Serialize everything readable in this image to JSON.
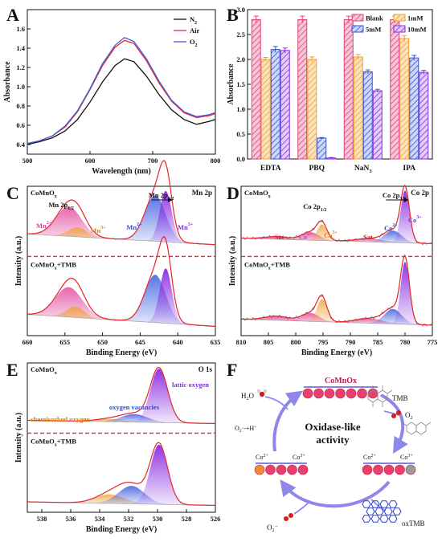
{
  "panel_letters": [
    "A",
    "B",
    "C",
    "D",
    "E",
    "F"
  ],
  "chart_data": [
    {
      "id": "A",
      "type": "line",
      "xlabel": "Wavelength (nm)",
      "ylabel": "Absorbance",
      "xlim": [
        500,
        800
      ],
      "ylim": [
        0.3,
        1.8
      ],
      "xticks": [
        "500",
        "600",
        "700",
        "800"
      ],
      "yticks": [
        "0.4",
        "0.6",
        "0.8",
        "1.0",
        "1.2",
        "1.4",
        "1.6"
      ],
      "legend_position": "top-right",
      "series": [
        {
          "name": "N",
          "sub": "2",
          "color": "#111111",
          "x": [
            500,
            520,
            540,
            560,
            580,
            600,
            620,
            640,
            655,
            670,
            690,
            710,
            730,
            750,
            770,
            790,
            800
          ],
          "y": [
            0.4,
            0.43,
            0.47,
            0.54,
            0.66,
            0.84,
            1.05,
            1.22,
            1.29,
            1.26,
            1.11,
            0.92,
            0.76,
            0.66,
            0.61,
            0.64,
            0.66
          ]
        },
        {
          "name": "Air",
          "sub": "",
          "color": "#e8262c",
          "x": [
            500,
            520,
            540,
            560,
            580,
            600,
            620,
            640,
            655,
            670,
            690,
            710,
            730,
            750,
            770,
            790,
            800
          ],
          "y": [
            0.41,
            0.44,
            0.49,
            0.58,
            0.74,
            0.97,
            1.22,
            1.41,
            1.48,
            1.45,
            1.27,
            1.04,
            0.85,
            0.73,
            0.68,
            0.7,
            0.72
          ]
        },
        {
          "name": "O",
          "sub": "2",
          "color": "#3b5fd9",
          "x": [
            500,
            520,
            540,
            560,
            580,
            600,
            620,
            640,
            655,
            670,
            690,
            710,
            730,
            750,
            770,
            790,
            800
          ],
          "y": [
            0.41,
            0.44,
            0.49,
            0.59,
            0.75,
            0.98,
            1.24,
            1.43,
            1.51,
            1.47,
            1.29,
            1.06,
            0.86,
            0.74,
            0.69,
            0.71,
            0.73
          ]
        }
      ]
    },
    {
      "id": "B",
      "type": "bar",
      "ylabel": "Absorbance",
      "ylim": [
        0,
        3.0
      ],
      "yticks": [
        "0.0",
        "0.5",
        "1.0",
        "1.5",
        "2.0",
        "2.5",
        "3.0"
      ],
      "categories": [
        "EDTA",
        "PBQ",
        "NaN",
        "IPA"
      ],
      "category_subs": [
        "",
        "",
        "3",
        ""
      ],
      "legend_position": "top-right",
      "series": [
        {
          "name": "Blank",
          "color": "#e0407a",
          "values": [
            2.8,
            2.8,
            2.8,
            2.8
          ],
          "errors": [
            0.07,
            0.07,
            0.07,
            0.07
          ]
        },
        {
          "name": "1mM",
          "color": "#f0a030",
          "values": [
            2.0,
            2.0,
            2.05,
            2.42
          ],
          "errors": [
            0.04,
            0.05,
            0.05,
            0.06
          ]
        },
        {
          "name": "5mM",
          "color": "#3550d8",
          "values": [
            2.2,
            0.42,
            1.75,
            2.03
          ],
          "errors": [
            0.06,
            0.01,
            0.04,
            0.05
          ]
        },
        {
          "name": "10mM",
          "color": "#8a2be2",
          "values": [
            2.18,
            0.02,
            1.37,
            1.74
          ],
          "errors": [
            0.05,
            0.01,
            0.03,
            0.04
          ]
        }
      ]
    },
    {
      "id": "C",
      "type": "line",
      "title": "Mn 2p",
      "xlabel": "Binding Energy (eV)",
      "ylabel": "Intensity (a.u.)",
      "xlim": [
        660,
        635
      ],
      "xticks": [
        "660",
        "655",
        "650",
        "645",
        "640",
        "635"
      ],
      "top_sample": "CoMnO",
      "top_sample_sub": "x",
      "bottom_sample": "CoMnO",
      "bottom_sample_sub": "x",
      "bottom_sample_suffix": "+TMB",
      "peak_labels": [
        {
          "text": "Mn 2p",
          "sub": "1/2",
          "x": 655.5
        },
        {
          "text": "Mn 2p",
          "sub": "3/2",
          "x": 642.2
        }
      ],
      "component_labels": [
        {
          "text": "Mn",
          "sup": "2+",
          "x": 657.8,
          "color": "#e0409a"
        },
        {
          "text": "Mn",
          "sup": "3+",
          "x": 650.6,
          "color": "#e0801a"
        },
        {
          "text": "Mn",
          "sup": "2+",
          "x": 645.8,
          "color": "#2a4fd8"
        },
        {
          "text": "Mn",
          "sup": "3+",
          "x": 639.0,
          "color": "#8a2be2"
        }
      ]
    },
    {
      "id": "D",
      "type": "line",
      "title": "Co 2p",
      "xlabel": "Binding Energy (eV)",
      "ylabel": "Intensity (a.u.)",
      "xlim": [
        810,
        775
      ],
      "xticks": [
        "810",
        "805",
        "800",
        "795",
        "790",
        "785",
        "780",
        "775"
      ],
      "top_sample": "CoMnO",
      "top_sample_sub": "x",
      "bottom_sample": "CoMnO",
      "bottom_sample_sub": "x",
      "bottom_sample_suffix": "+TMB",
      "peak_labels": [
        {
          "text": "Co 2p",
          "sub": "1/2",
          "x": 796.5
        },
        {
          "text": "Co 2p",
          "sub": "3/2",
          "x": 782.0
        }
      ],
      "component_labels": [
        {
          "text": "Sat",
          "sup": "",
          "x": 803.0,
          "color": "#e02020"
        },
        {
          "text": "Co",
          "sup": "2+",
          "x": 798.2,
          "color": "#e0409a"
        },
        {
          "text": "Co",
          "sup": "3+",
          "x": 793.6,
          "color": "#e0801a"
        },
        {
          "text": "Sat",
          "sup": "",
          "x": 786.8,
          "color": "#e02020"
        },
        {
          "text": "Co",
          "sup": "2+",
          "x": 782.6,
          "color": "#2a4fd8"
        },
        {
          "text": "Co",
          "sup": "3+",
          "x": 778.2,
          "color": "#8a2be2"
        }
      ]
    },
    {
      "id": "E",
      "type": "line",
      "title": "O 1s",
      "xlabel": "Binding Energy (eV)",
      "ylabel": "Intensity (a.u.)",
      "xlim": [
        539,
        526
      ],
      "xticks": [
        "538",
        "536",
        "534",
        "532",
        "530",
        "528",
        "526"
      ],
      "top_sample": "CoMnO",
      "top_sample_sub": "x",
      "bottom_sample": "CoMnO",
      "bottom_sample_sub": "x",
      "bottom_sample_suffix": "+TMB",
      "component_labels": [
        {
          "text": "lattic oxygen",
          "color": "#8a2be2"
        },
        {
          "text": "oxygen vacancies",
          "color": "#2a4fd8"
        },
        {
          "text": "chemisorbed oxygen",
          "color": "#e0801a"
        }
      ]
    }
  ],
  "diagram_f": {
    "top_material": "CoMnOx",
    "center_text_line1": "Oxidase-like",
    "center_text_line2": "activity",
    "tmb": "TMB",
    "oxtmb": "oxTMB",
    "o2": "O",
    "o2_sub": "2",
    "h2o": "H",
    "h2o_sub": "2",
    "h2o_tail": "O",
    "o2_radical": "O",
    "o2_radical_sub": "2",
    "o2_radical_sup": "·-",
    "o2_radical_left": "O",
    "o2_radical_left_sub": "2",
    "o2_radical_left_tail": "·-+H",
    "o2_radical_left_sup": "+",
    "co2": "Co",
    "co2_sup": "2+",
    "co3": "Co",
    "co3_sup": "3+"
  }
}
